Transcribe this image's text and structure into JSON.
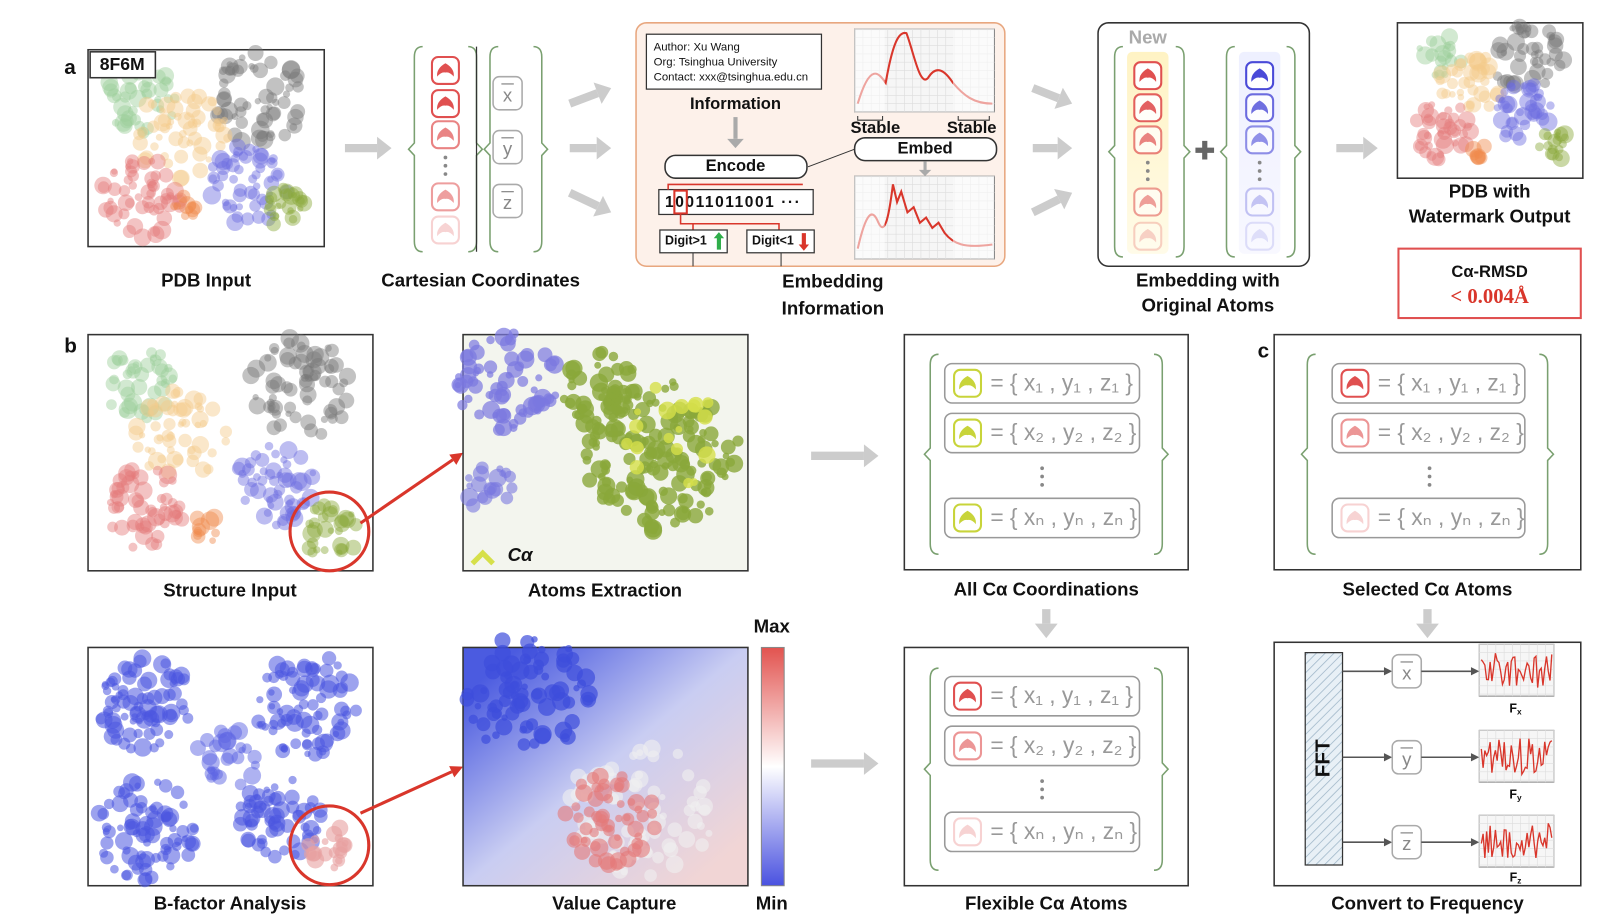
{
  "panel_a": {
    "label": "a",
    "pdb_id": "8F6M",
    "pdb_input": "PDB Input",
    "vectors": [
      "x",
      "y",
      "z"
    ],
    "cartesian_caption": "Cartesian Coordinates",
    "author_lines": [
      "Author: Xu Wang",
      "Org: Tsinghua University",
      "Contact: xxx@tsinghua.edu.cn"
    ],
    "information": "Information",
    "encode": "Encode",
    "bit_string": "10011011001 ···",
    "digit_up": "Digit>1",
    "digit_down": "Digit<1",
    "stable_left": "Stable",
    "stable_right": "Stable",
    "embed": "Embed",
    "embedding_caption": [
      "Embedding",
      "Information"
    ],
    "new": "New",
    "original_caption": [
      "Embedding with",
      "Original Atoms"
    ],
    "output_caption": [
      "PDB with",
      "Watermark Output"
    ],
    "rmsd_label": "Cα-RMSD",
    "rmsd_value": "< 0.004Å"
  },
  "panel_b": {
    "label": "b",
    "structure_caption": "Structure Input",
    "extraction_caption": "Atoms Extraction",
    "ca_legend": "Cα",
    "all_ca": {
      "rows": [
        "= { x₁ , y₁ , z₁ }",
        "= { x₂ , y₂ , z₂ }",
        "= { xₙ , yₙ , zₙ }"
      ],
      "caption": "All Cα Coordinations"
    },
    "bfactor_caption": "B-factor Analysis",
    "value_caption": "Value Capture",
    "scale_max": "Max",
    "scale_min": "Min",
    "flexible": {
      "rows": [
        "= { x₁ , y₁ , z₁ }",
        "= { x₂ , y₂ , z₂ }",
        "= { xₙ , yₙ , zₙ }"
      ],
      "caption": "Flexible Cα Atoms"
    }
  },
  "panel_c": {
    "label": "c",
    "selected": {
      "rows": [
        "= { x₁ , y₁ , z₁ }",
        "= { x₂ , y₂ , z₂ }",
        "= { xₙ , yₙ , zₙ }"
      ],
      "caption": "Selected Cα Atoms"
    },
    "fft": "FFT",
    "vectors": [
      "x",
      "y",
      "z"
    ],
    "freq_labels": [
      {
        "main": "F",
        "sub": "x"
      },
      {
        "main": "F",
        "sub": "y"
      },
      {
        "main": "F",
        "sub": "z"
      }
    ],
    "caption": "Convert to Frequency"
  }
}
